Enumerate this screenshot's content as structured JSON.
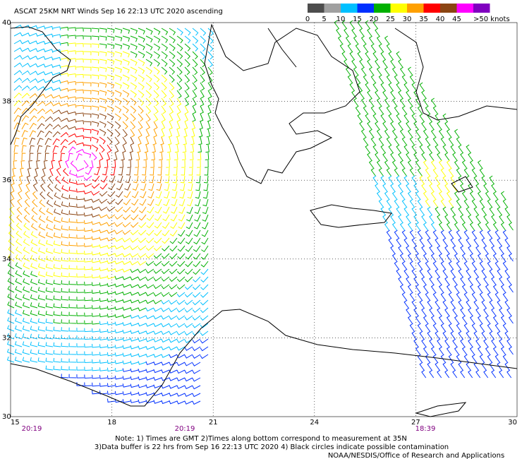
{
  "title": "ASCAT 25KM NRT Winds Sep 16 22:13 UTC 2020 ascending",
  "legend": {
    "colors": [
      "#4d4d4d",
      "#a0a0a0",
      "#00c0ff",
      "#0030ff",
      "#00b000",
      "#ffff00",
      "#ffa000",
      "#ff0000",
      "#8b4513",
      "#ff00ff",
      "#8000c0"
    ],
    "labels": [
      "0",
      "5",
      "10",
      "15",
      "20",
      "25",
      "30",
      "35",
      "40",
      "45",
      ">50 knots"
    ]
  },
  "map": {
    "lat_labels": [
      "40",
      "38",
      "36",
      "34",
      "32",
      "30"
    ],
    "lon_labels": [
      "15",
      "18",
      "21",
      "24",
      "27",
      "30"
    ],
    "pass_times": [
      "20:19",
      "20:19",
      "18:39"
    ]
  },
  "notes": [
    "Note: 1) Times are GMT 2)Times along bottom correspond to measurement at 35N",
    "3)Data buffer is 22 hrs from Sep 16 22:13 UTC 2020 4) Black circles indicate possible contamination",
    "NOAA/NESDIS/Office of Research and Applications"
  ]
}
